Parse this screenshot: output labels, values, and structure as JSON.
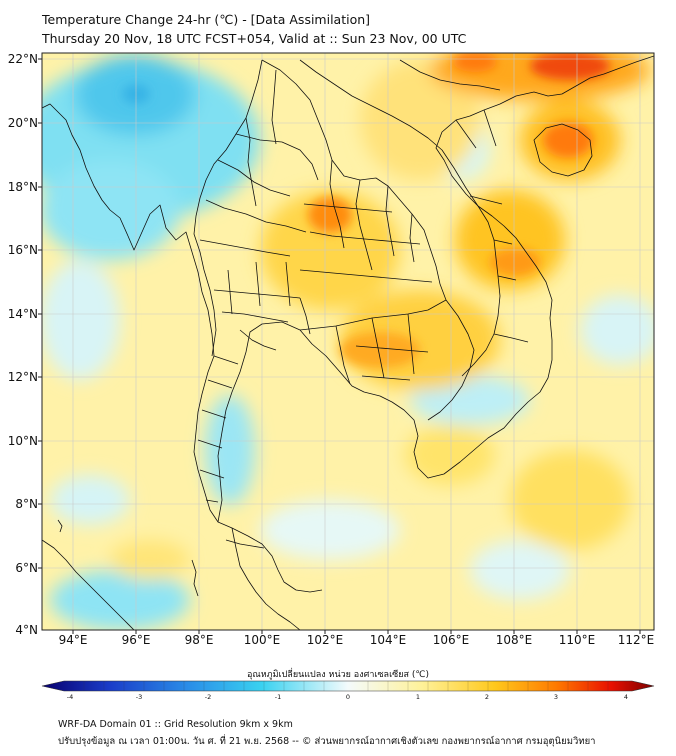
{
  "title": {
    "line1": "Temperature Change 24-hr (℃) - [Data Assimilation]",
    "line2": "Thursday 20 Nov, 18 UTC FCST+054, Valid at :: Sun 23 Nov, 00 UTC"
  },
  "axes": {
    "latitudes": [
      "22°N",
      "20°N",
      "18°N",
      "16°N",
      "14°N",
      "12°N",
      "10°N",
      "8°N",
      "6°N",
      "4°N"
    ],
    "longitudes": [
      "94°E",
      "96°E",
      "98°E",
      "100°E",
      "102°E",
      "104°E",
      "106°E",
      "108°E",
      "110°E",
      "112°E"
    ]
  },
  "colorbar": {
    "label": "อุณหภูมิเปลี่ยนแปลง หน่วย องศาเซลเซียส (℃)",
    "ticks": [
      "-4",
      "-3",
      "-2",
      "-1",
      "0",
      "1",
      "2",
      "3",
      "4"
    ],
    "colors": [
      "#08006e",
      "#1a3cc8",
      "#2a8ee8",
      "#3ad2f0",
      "#f4fbfc",
      "#fff29a",
      "#ffc81c",
      "#ff7a00",
      "#e81000",
      "#7a0000"
    ]
  },
  "footer": {
    "line1": "WRF-DA Domain 01 :: Grid Resolution 9km x 9km",
    "line2": "ปรับปรุงข้อมูล ณ เวลา 01:00น. วัน ศ. ที่ 21 พ.ย. 2568 -- © ส่วนพยากรณ์อากาศเชิงตัวเลข กองพยากรณ์อากาศ กรมอุตุนิยมวิทยา"
  }
}
